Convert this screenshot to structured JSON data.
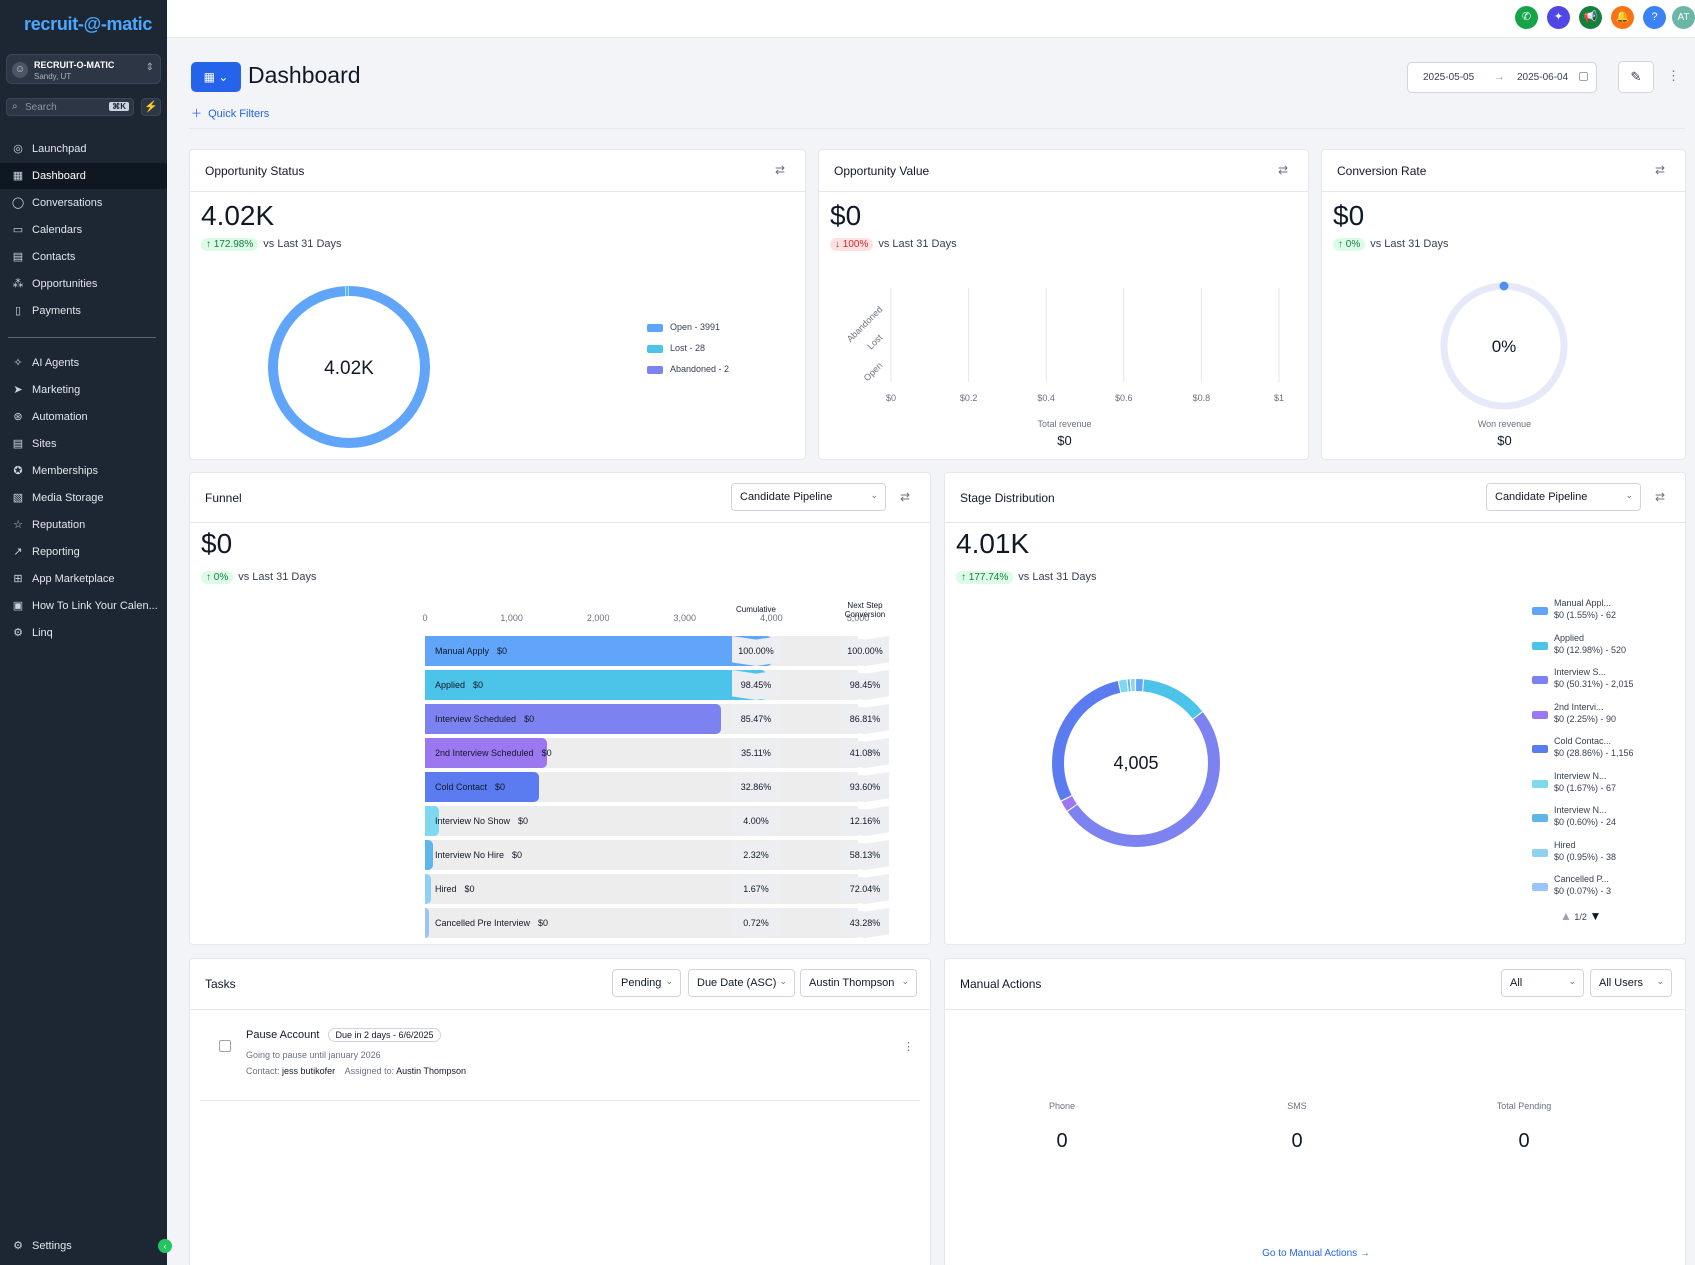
{
  "sidebar": {
    "logo": "recruit-@-matic",
    "account": {
      "name": "RECRUIT-O-MATIC",
      "location": "Sandy, UT"
    },
    "search": {
      "placeholder": "Search",
      "shortcut": "⌘K"
    },
    "items": [
      {
        "label": "Launchpad",
        "icon": "rocket-icon"
      },
      {
        "label": "Dashboard",
        "icon": "grid-icon",
        "active": true
      },
      {
        "label": "Conversations",
        "icon": "chat-icon"
      },
      {
        "label": "Calendars",
        "icon": "calendar-icon"
      },
      {
        "label": "Contacts",
        "icon": "contacts-icon"
      },
      {
        "label": "Opportunities",
        "icon": "opportunities-icon"
      },
      {
        "label": "Payments",
        "icon": "payments-icon"
      }
    ],
    "items2": [
      {
        "label": "AI Agents",
        "icon": "sparkle-icon"
      },
      {
        "label": "Marketing",
        "icon": "send-icon"
      },
      {
        "label": "Automation",
        "icon": "automation-icon"
      },
      {
        "label": "Sites",
        "icon": "sites-icon"
      },
      {
        "label": "Memberships",
        "icon": "badge-icon"
      },
      {
        "label": "Media Storage",
        "icon": "image-icon"
      },
      {
        "label": "Reputation",
        "icon": "star-icon"
      },
      {
        "label": "Reporting",
        "icon": "chart-icon"
      },
      {
        "label": "App Marketplace",
        "icon": "apps-icon"
      },
      {
        "label": "How To Link Your Calen...",
        "icon": "link-icon"
      },
      {
        "label": "Linq",
        "icon": "gears-icon"
      }
    ],
    "settings": "Settings"
  },
  "topbar": {
    "avatar": "AT"
  },
  "header": {
    "title": "Dashboard",
    "quick_filters": "Quick Filters",
    "date_start": "2025-05-05",
    "date_end": "2025-06-04"
  },
  "opp_status": {
    "title": "Opportunity Status",
    "value": "4.02K",
    "delta": "↑ 172.98%",
    "vs": "vs Last 31 Days",
    "center": "4.02K",
    "legend": [
      {
        "label": "Open - 3991",
        "color": "#60a5fa"
      },
      {
        "label": "Lost - 28",
        "color": "#4cc3e8"
      },
      {
        "label": "Abandoned - 2",
        "color": "#7c83f0"
      }
    ]
  },
  "opp_value": {
    "title": "Opportunity Value",
    "value": "$0",
    "delta": "↓ 100%",
    "vs": "vs Last 31 Days",
    "categories": [
      "Abandoned",
      "Lost",
      "Open"
    ],
    "ticks": [
      "$0",
      "$0.2",
      "$0.4",
      "$0.6",
      "$0.8",
      "$1"
    ],
    "footer_label": "Total revenue",
    "footer_value": "$0"
  },
  "conversion": {
    "title": "Conversion Rate",
    "value": "$0",
    "delta": "↑ 0%",
    "vs": "vs Last 31 Days",
    "center": "0%",
    "percent": 0,
    "footer_label": "Won revenue",
    "footer_value": "$0"
  },
  "funnel": {
    "title": "Funnel",
    "pipeline": "Candidate Pipeline",
    "value": "$0",
    "delta": "↑ 0%",
    "vs": "vs Last 31 Days",
    "axis": [
      "0",
      "1,000",
      "2,000",
      "3,000",
      "4,000",
      "5,000"
    ],
    "axis_max": 5000,
    "cum_header": "Cumulative",
    "next_header": "Next Step Conversion",
    "stages": [
      {
        "label": "Manual Apply",
        "amount": "$0",
        "count": 4005,
        "cum": "100.00%",
        "next": "100.00%",
        "color": "#60a5fa"
      },
      {
        "label": "Applied",
        "amount": "$0",
        "count": 3943,
        "cum": "98.45%",
        "next": "98.45%",
        "color": "#4cc3e8"
      },
      {
        "label": "Interview Scheduled",
        "amount": "$0",
        "count": 3423,
        "cum": "85.47%",
        "next": "86.81%",
        "color": "#7c83f0"
      },
      {
        "label": "2nd Interview Scheduled",
        "amount": "$0",
        "count": 1406,
        "cum": "35.11%",
        "next": "41.08%",
        "color": "#9b78ef"
      },
      {
        "label": "Cold Contact",
        "amount": "$0",
        "count": 1316,
        "cum": "32.86%",
        "next": "93.60%",
        "color": "#5b7cf0"
      },
      {
        "label": "Interview No Show",
        "amount": "$0",
        "count": 160,
        "cum": "4.00%",
        "next": "12.16%",
        "color": "#7dd8f0"
      },
      {
        "label": "Interview No Hire",
        "amount": "$0",
        "count": 93,
        "cum": "2.32%",
        "next": "58.13%",
        "color": "#5fb6ea"
      },
      {
        "label": "Hired",
        "amount": "$0",
        "count": 67,
        "cum": "1.67%",
        "next": "72.04%",
        "color": "#8fd0f5"
      },
      {
        "label": "Cancelled Pre Interview",
        "amount": "$0",
        "count": 29,
        "cum": "0.72%",
        "next": "43.28%",
        "color": "#9cc4f8"
      }
    ]
  },
  "stage_dist": {
    "title": "Stage Distribution",
    "pipeline": "Candidate Pipeline",
    "value": "4.01K",
    "delta": "↑ 177.74%",
    "vs": "vs Last 31 Days",
    "center": "4,005",
    "legend": [
      {
        "name": "Manual Appl...",
        "detail": "$0 (1.55%) - 62",
        "count": 62,
        "color": "#60a5fa"
      },
      {
        "name": "Applied",
        "detail": "$0 (12.98%) - 520",
        "count": 520,
        "color": "#4cc3e8"
      },
      {
        "name": "Interview S...",
        "detail": "$0 (50.31%) - 2,015",
        "count": 2015,
        "color": "#7c83f0"
      },
      {
        "name": "2nd Intervi...",
        "detail": "$0 (2.25%) - 90",
        "count": 90,
        "color": "#9b78ef"
      },
      {
        "name": "Cold Contac...",
        "detail": "$0 (28.86%) - 1,156",
        "count": 1156,
        "color": "#5b7cf0"
      },
      {
        "name": "Interview N...",
        "detail": "$0 (1.67%) - 67",
        "count": 67,
        "color": "#7dd8f0"
      },
      {
        "name": "Interview N...",
        "detail": "$0 (0.60%) - 24",
        "count": 24,
        "color": "#5fb6ea"
      },
      {
        "name": "Hired",
        "detail": "$0 (0.95%) - 38",
        "count": 38,
        "color": "#8fd0f5"
      },
      {
        "name": "Cancelled P...",
        "detail": "$0 (0.07%) - 3",
        "count": 3,
        "color": "#9cc4f8"
      }
    ],
    "page": "1/2"
  },
  "tasks": {
    "title": "Tasks",
    "filter_status": "Pending",
    "filter_sort": "Due Date (ASC)",
    "filter_user": "Austin Thompson",
    "items": [
      {
        "title": "Pause Account",
        "badge": "Due in 2 days - 6/6/2025",
        "desc": "Going to pause until january 2026",
        "contact_label": "Contact:",
        "contact": "jess butikofer",
        "assigned_label": "Assigned to:",
        "assigned": "Austin Thompson"
      }
    ]
  },
  "manual": {
    "title": "Manual Actions",
    "filter_type": "All",
    "filter_users": "All Users",
    "stats": [
      {
        "label": "Phone",
        "value": "0"
      },
      {
        "label": "SMS",
        "value": "0"
      },
      {
        "label": "Total Pending",
        "value": "0"
      }
    ],
    "link": "Go to Manual Actions"
  }
}
